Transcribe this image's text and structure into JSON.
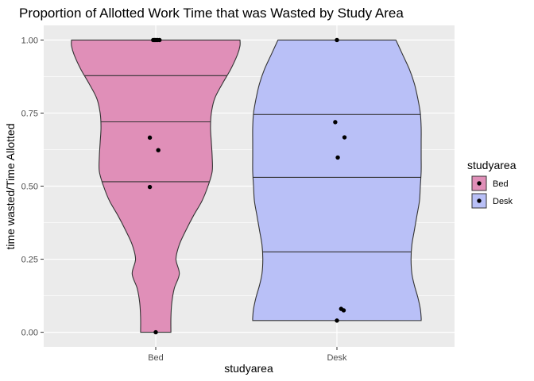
{
  "chart_data": {
    "type": "violin",
    "title": "Proportion of Allotted Work Time that was Wasted by Study Area",
    "xlabel": "studyarea",
    "ylabel": "time wasted/Time Allotted",
    "categories": [
      "Bed",
      "Desk"
    ],
    "ylim": [
      -0.05,
      1.05
    ],
    "yticks": [
      "0.00",
      "0.25",
      "0.50",
      "0.75",
      "1.00"
    ],
    "yticks_values": [
      0.0,
      0.25,
      0.5,
      0.75,
      1.0
    ],
    "grid": true,
    "legend": {
      "title": "studyarea",
      "position": "right",
      "entries": [
        "Bed",
        "Desk"
      ]
    },
    "colors": {
      "Bed": "#e08fb8",
      "Desk": "#b9c0f7",
      "panel": "#ebebeb",
      "grid": "#ffffff",
      "outline": "#333333"
    },
    "series": [
      {
        "category": "Bed",
        "quantiles": [
          0.515,
          0.72,
          0.878
        ],
        "range": [
          0.0,
          1.0
        ],
        "profile": [
          [
            0.0,
            0.18
          ],
          [
            0.05,
            0.18
          ],
          [
            0.1,
            0.19
          ],
          [
            0.15,
            0.22
          ],
          [
            0.2,
            0.28
          ],
          [
            0.25,
            0.24
          ],
          [
            0.3,
            0.28
          ],
          [
            0.35,
            0.36
          ],
          [
            0.4,
            0.45
          ],
          [
            0.45,
            0.55
          ],
          [
            0.5,
            0.62
          ],
          [
            0.55,
            0.67
          ],
          [
            0.6,
            0.67
          ],
          [
            0.65,
            0.66
          ],
          [
            0.7,
            0.65
          ],
          [
            0.75,
            0.66
          ],
          [
            0.8,
            0.7
          ],
          [
            0.85,
            0.79
          ],
          [
            0.9,
            0.89
          ],
          [
            0.95,
            0.97
          ],
          [
            0.98,
            1.0
          ],
          [
            1.0,
            1.0
          ]
        ],
        "points": [
          [
            0.0,
            0.0
          ],
          [
            0.497,
            -0.07
          ],
          [
            0.623,
            0.03
          ],
          [
            0.666,
            -0.07
          ],
          [
            1.0,
            -0.03
          ],
          [
            1.0,
            -0.015
          ],
          [
            1.0,
            0.0
          ],
          [
            1.0,
            0.02
          ],
          [
            1.0,
            0.045
          ]
        ]
      },
      {
        "category": "Desk",
        "quantiles": [
          0.275,
          0.53,
          0.745
        ],
        "range": [
          0.04,
          1.0
        ],
        "profile": [
          [
            0.04,
            1.0
          ],
          [
            0.05,
            1.0
          ],
          [
            0.08,
            0.99
          ],
          [
            0.12,
            0.96
          ],
          [
            0.16,
            0.92
          ],
          [
            0.2,
            0.89
          ],
          [
            0.25,
            0.88
          ],
          [
            0.3,
            0.89
          ],
          [
            0.35,
            0.92
          ],
          [
            0.4,
            0.95
          ],
          [
            0.45,
            0.98
          ],
          [
            0.5,
            0.99
          ],
          [
            0.55,
            1.0
          ],
          [
            0.6,
            1.0
          ],
          [
            0.65,
            1.0
          ],
          [
            0.7,
            1.0
          ],
          [
            0.75,
            0.99
          ],
          [
            0.8,
            0.96
          ],
          [
            0.85,
            0.92
          ],
          [
            0.9,
            0.86
          ],
          [
            0.95,
            0.78
          ],
          [
            1.0,
            0.7
          ]
        ],
        "points": [
          [
            0.04,
            0.0
          ],
          [
            0.075,
            0.08
          ],
          [
            0.08,
            0.05
          ],
          [
            0.598,
            0.01
          ],
          [
            0.667,
            0.09
          ],
          [
            0.719,
            -0.02
          ],
          [
            1.0,
            0.0
          ]
        ]
      }
    ]
  }
}
